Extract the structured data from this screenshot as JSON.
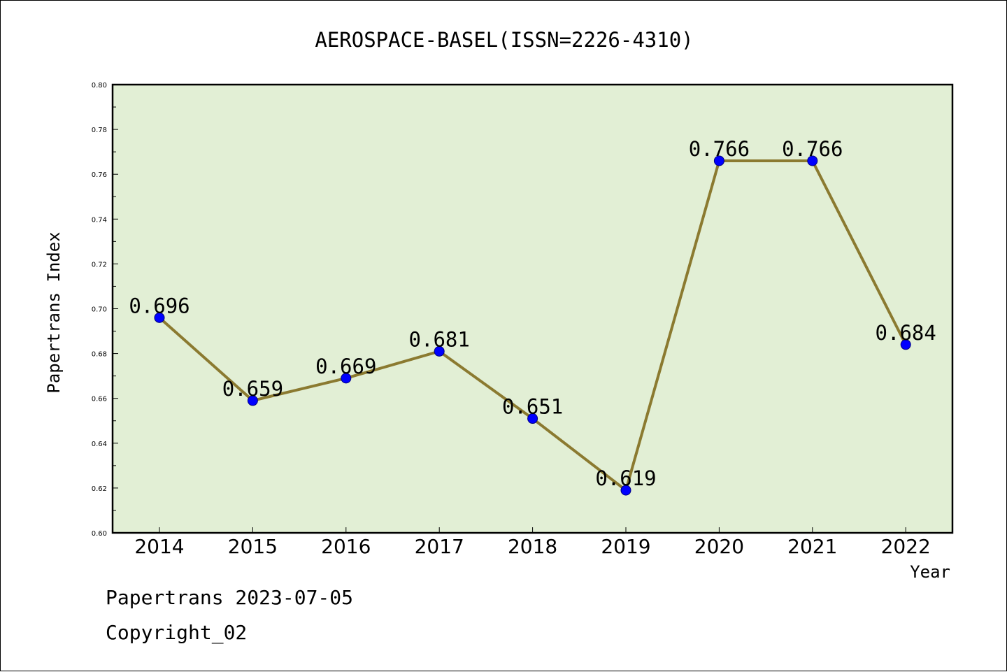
{
  "chart_data": {
    "type": "line",
    "title": "AEROSPACE-BASEL(ISSN=2226-4310)",
    "xlabel": "Year",
    "ylabel": "Papertrans Index",
    "categories": [
      "2014",
      "2015",
      "2016",
      "2017",
      "2018",
      "2019",
      "2020",
      "2021",
      "2022"
    ],
    "values": [
      0.696,
      0.659,
      0.669,
      0.681,
      0.651,
      0.619,
      0.766,
      0.766,
      0.684
    ],
    "data_labels": [
      "0.696",
      "0.659",
      "0.669",
      "0.681",
      "0.651",
      "0.619",
      "0.766",
      "0.766",
      "0.684"
    ],
    "ylim": [
      0.6,
      0.8
    ],
    "yticks": [
      0.6,
      0.62,
      0.64,
      0.66,
      0.68,
      0.7,
      0.72,
      0.74,
      0.76,
      0.78,
      0.8
    ],
    "ytick_labels": [
      "0.60",
      "0.62",
      "0.64",
      "0.66",
      "0.68",
      "0.70",
      "0.72",
      "0.74",
      "0.76",
      "0.78",
      "0.80"
    ],
    "grid": false,
    "legend": "none",
    "colors": {
      "plot_background": "#e2efd5",
      "line": "#8b7a30",
      "marker": "#0000ff",
      "marker_edge": "#000080"
    }
  },
  "footer": {
    "line1": "Papertrans 2023-07-05",
    "line2": "Copyright_02"
  }
}
